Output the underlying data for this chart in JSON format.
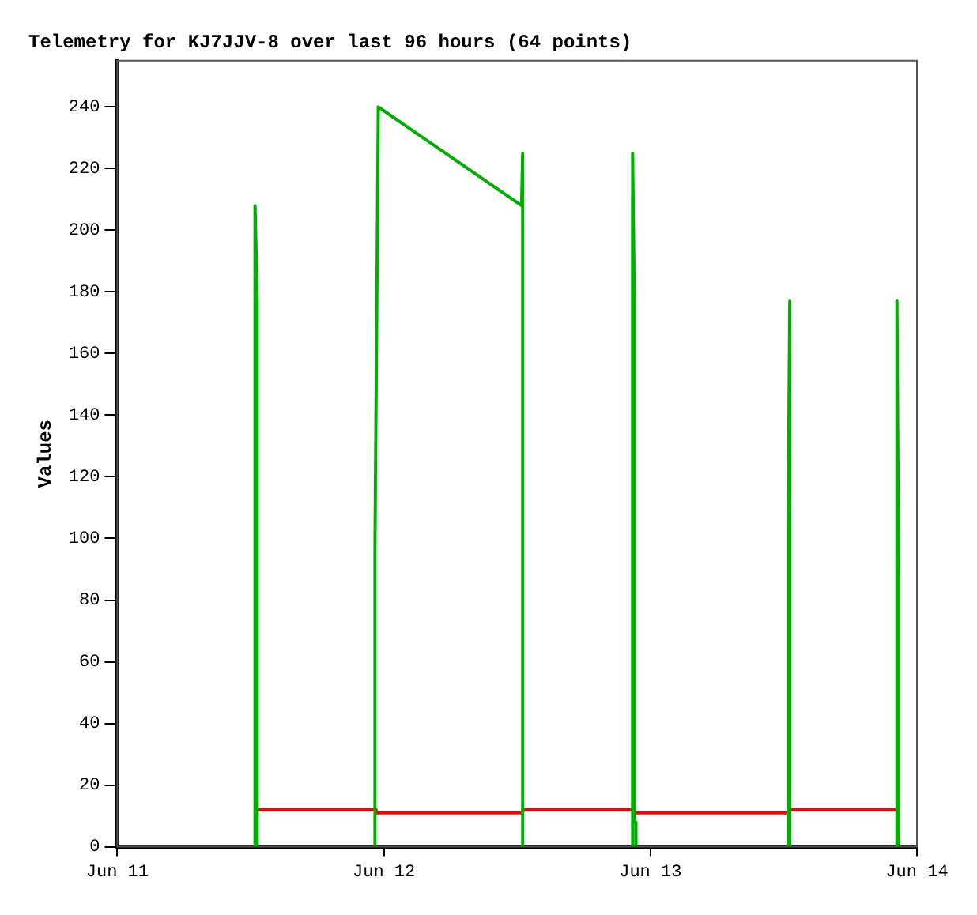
{
  "chart_data": {
    "type": "line",
    "title": "Telemetry for KJ7JJV-8 over last 96 hours (64 points)",
    "ylabel": "Values",
    "xlim": [
      "--06-11",
      "--06-14"
    ],
    "xticks": [
      {
        "value": "--06-11",
        "label": "Jun 11"
      },
      {
        "value": "--06-12",
        "label": "Jun 12"
      },
      {
        "value": "--06-13",
        "label": "Jun 13"
      },
      {
        "value": "--06-14",
        "label": "Jun 14"
      }
    ],
    "ylim": [
      0,
      255
    ],
    "yticks": [
      0,
      20,
      40,
      60,
      80,
      100,
      120,
      140,
      160,
      180,
      200,
      220,
      240
    ],
    "grid": false,
    "legend": false,
    "marker": "none",
    "line_style": "solid",
    "series": [
      {
        "color": "#00b000",
        "x": [
          "--06-11T12:24",
          "--06-11T12:24",
          "--06-11T12:36",
          "--06-11T12:36",
          "--06-11T18:00",
          "--06-11T23:12",
          "--06-11T23:12",
          "--06-11T23:30",
          "--06-12T12:24",
          "--06-12T12:30",
          "--06-12T12:30",
          "--06-12T17:00",
          "--06-12T22:24",
          "--06-12T22:24",
          "--06-12T22:33",
          "--06-12T22:33",
          "--06-12T22:42",
          "--06-12T22:42",
          "--06-13T05:00",
          "--06-13T12:24",
          "--06-13T12:24",
          "--06-13T12:33",
          "--06-13T12:33",
          "--06-13T17:00",
          "--06-13T22:12",
          "--06-13T22:12",
          "--06-13T22:21",
          "--06-13T22:21"
        ],
        "values": [
          0,
          208,
          177,
          0,
          null,
          0,
          97,
          240,
          208,
          225,
          0,
          null,
          0,
          225,
          177,
          8,
          8,
          0,
          null,
          0,
          104,
          177,
          0,
          null,
          0,
          177,
          88,
          0
        ]
      },
      {
        "color": "#ff0000",
        "x": [
          "--06-11T12:36",
          "--06-11T23:18",
          "--06-11T23:18",
          "--06-12T12:30",
          "--06-12T12:30",
          "--06-12T22:30",
          "--06-12T22:30",
          "--06-13T12:30",
          "--06-13T12:30",
          "--06-13T22:18"
        ],
        "values": [
          12,
          12,
          11,
          11,
          12,
          12,
          11,
          11,
          12,
          12
        ]
      },
      {
        "color": "#000000",
        "x": [
          "--06-11T12:30",
          "--06-13T22:18"
        ],
        "values": [
          0,
          0
        ]
      }
    ]
  }
}
